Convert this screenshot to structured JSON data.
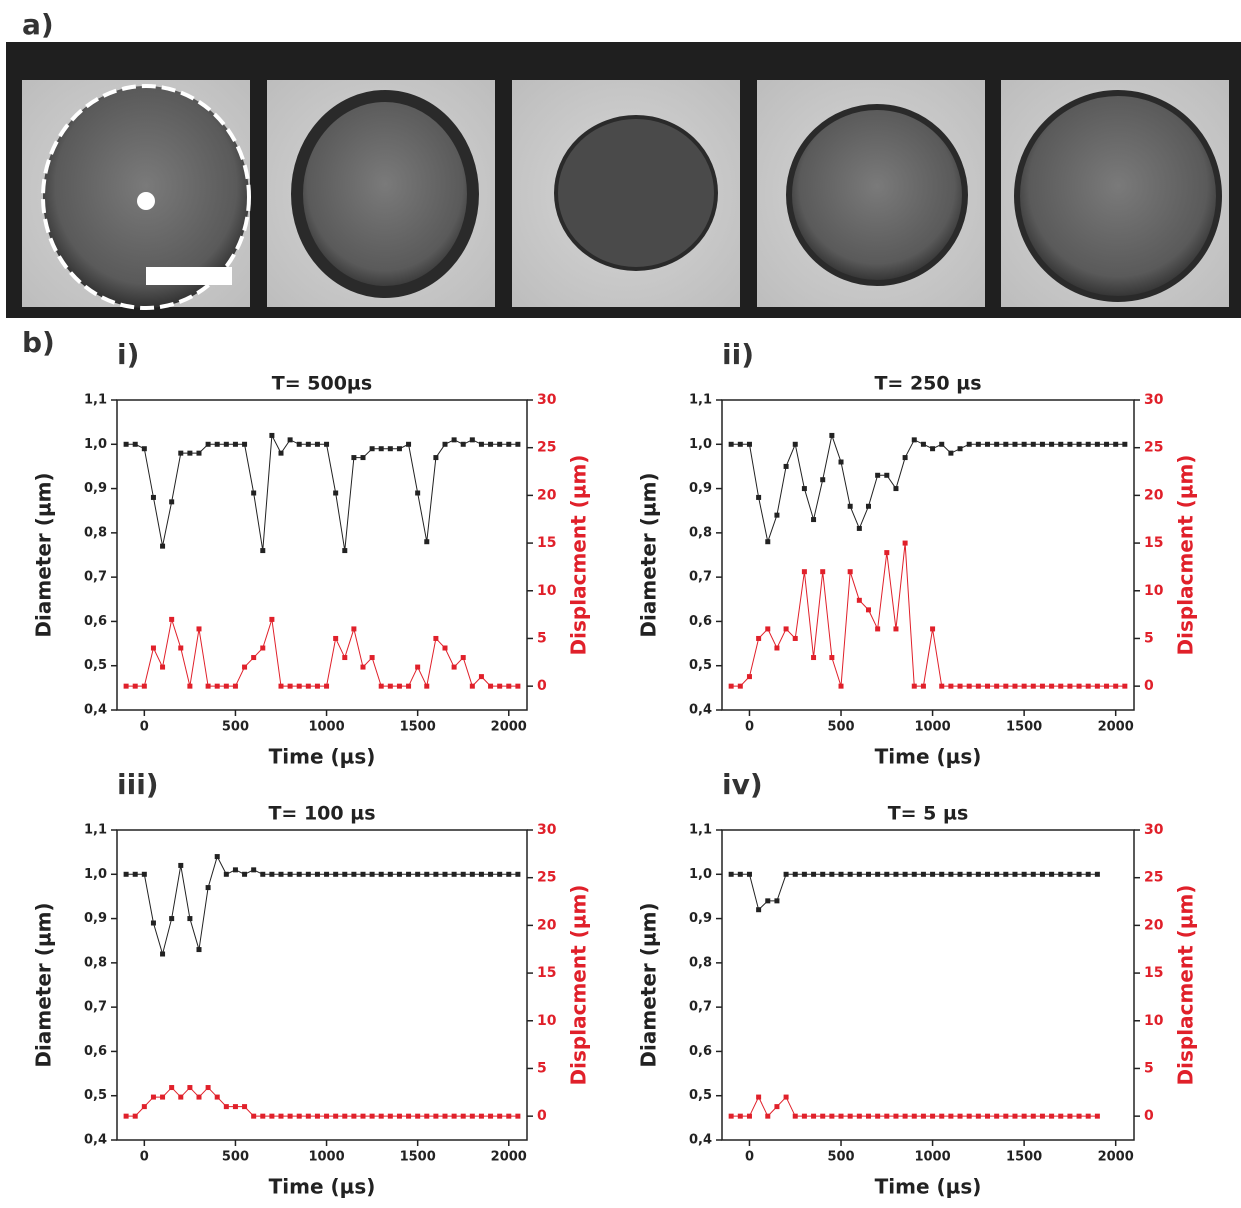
{
  "panel_labels": [
    "a)",
    "b)"
  ],
  "chart_data": [
    {
      "type": "line",
      "label": "i)",
      "title": "T= 500µs",
      "x_label": "Time (µs)",
      "y_label": "Diameter (µm)",
      "y2_label": "Displacment (µm)",
      "x": [
        -100,
        -50,
        0,
        50,
        100,
        150,
        200,
        250,
        300,
        350,
        400,
        450,
        500,
        550,
        600,
        650,
        700,
        750,
        800,
        850,
        900,
        950,
        1000,
        1050,
        1100,
        1150,
        1200,
        1250,
        1300,
        1350,
        1400,
        1450,
        1500,
        1550,
        1600,
        1650,
        1700,
        1750,
        1800,
        1850,
        1900,
        1950,
        2000,
        2050
      ],
      "xlim": [
        -150,
        2100
      ],
      "xticks": [
        0,
        500,
        1000,
        1500,
        2000
      ],
      "ylim": [
        0.4,
        1.1
      ],
      "yticks": [
        {
          "value": 0.4,
          "label": "0,4"
        },
        {
          "value": 0.5,
          "label": "0,5"
        },
        {
          "value": 0.6,
          "label": "0,6"
        },
        {
          "value": 0.7,
          "label": "0,7"
        },
        {
          "value": 0.8,
          "label": "0,8"
        },
        {
          "value": 0.9,
          "label": "0,9"
        },
        {
          "value": 1.0,
          "label": "1,0"
        },
        {
          "value": 1.1,
          "label": "1,1"
        }
      ],
      "y2lim": [
        -2.5,
        30
      ],
      "y2ticks": [
        0,
        5,
        10,
        15,
        20,
        25,
        30
      ],
      "series": [
        {
          "color": "#222222",
          "values": [
            1.0,
            1.0,
            0.99,
            0.88,
            0.77,
            0.87,
            0.98,
            0.98,
            0.98,
            1.0,
            1.0,
            1.0,
            1.0,
            1.0,
            0.89,
            0.76,
            1.02,
            0.98,
            1.01,
            1.0,
            1.0,
            1.0,
            1.0,
            0.89,
            0.76,
            0.97,
            0.97,
            0.99,
            0.99,
            0.99,
            0.99,
            1.0,
            0.89,
            0.78,
            0.97,
            1.0,
            1.01,
            1.0,
            1.01,
            1.0,
            1.0,
            1.0,
            1.0,
            1.0
          ]
        },
        {
          "color": "#e0202a",
          "axis": "y2",
          "values": [
            0,
            0,
            0,
            4,
            2,
            7,
            4,
            0,
            6,
            0,
            0,
            0,
            0,
            2,
            3,
            4,
            7,
            0,
            0,
            0,
            0,
            0,
            0,
            5,
            3,
            6,
            2,
            3,
            0,
            0,
            0,
            0,
            2,
            0,
            5,
            4,
            2,
            3,
            0,
            1,
            0,
            0,
            0,
            0
          ]
        }
      ]
    },
    {
      "type": "line",
      "label": "ii)",
      "title": "T= 250 µs",
      "x_label": "Time (µs)",
      "y_label": "Diameter (µm)",
      "y2_label": "Displacment (µm)",
      "x": [
        -100,
        -50,
        0,
        50,
        100,
        150,
        200,
        250,
        300,
        350,
        400,
        450,
        500,
        550,
        600,
        650,
        700,
        750,
        800,
        850,
        900,
        950,
        1000,
        1050,
        1100,
        1150,
        1200,
        1250,
        1300,
        1350,
        1400,
        1450,
        1500,
        1550,
        1600,
        1650,
        1700,
        1750,
        1800,
        1850,
        1900,
        1950,
        2000,
        2050
      ],
      "xlim": [
        -150,
        2100
      ],
      "xticks": [
        0,
        500,
        1000,
        1500,
        2000
      ],
      "ylim": [
        0.4,
        1.1
      ],
      "yticks": [
        {
          "value": 0.4,
          "label": "0,4"
        },
        {
          "value": 0.5,
          "label": "0,5"
        },
        {
          "value": 0.6,
          "label": "0,6"
        },
        {
          "value": 0.7,
          "label": "0,7"
        },
        {
          "value": 0.8,
          "label": "0,8"
        },
        {
          "value": 0.9,
          "label": "0,9"
        },
        {
          "value": 1.0,
          "label": "1,0"
        },
        {
          "value": 1.1,
          "label": "1,1"
        }
      ],
      "y2lim": [
        -2.5,
        30
      ],
      "y2ticks": [
        0,
        5,
        10,
        15,
        20,
        25,
        30
      ],
      "series": [
        {
          "color": "#222222",
          "values": [
            1.0,
            1.0,
            1.0,
            0.88,
            0.78,
            0.84,
            0.95,
            1.0,
            0.9,
            0.83,
            0.92,
            1.02,
            0.96,
            0.86,
            0.81,
            0.86,
            0.93,
            0.93,
            0.9,
            0.97,
            1.01,
            1.0,
            0.99,
            1.0,
            0.98,
            0.99,
            1.0,
            1.0,
            1.0,
            1.0,
            1.0,
            1.0,
            1.0,
            1.0,
            1.0,
            1.0,
            1.0,
            1.0,
            1.0,
            1.0,
            1.0,
            1.0,
            1.0,
            1.0
          ]
        },
        {
          "color": "#e0202a",
          "axis": "y2",
          "values": [
            0,
            0,
            1,
            5,
            6,
            4,
            6,
            5,
            12,
            3,
            12,
            3,
            0,
            12,
            9,
            8,
            6,
            14,
            6,
            15,
            0,
            0,
            6,
            0,
            0,
            0,
            0,
            0,
            0,
            0,
            0,
            0,
            0,
            0,
            0,
            0,
            0,
            0,
            0,
            0,
            0,
            0,
            0,
            0
          ]
        }
      ]
    },
    {
      "type": "line",
      "label": "iii)",
      "title": "T= 100 µs",
      "x_label": "Time (µs)",
      "y_label": "Diameter (µm)",
      "y2_label": "Displacment (µm)",
      "x": [
        -100,
        -50,
        0,
        50,
        100,
        150,
        200,
        250,
        300,
        350,
        400,
        450,
        500,
        550,
        600,
        650,
        700,
        750,
        800,
        850,
        900,
        950,
        1000,
        1050,
        1100,
        1150,
        1200,
        1250,
        1300,
        1350,
        1400,
        1450,
        1500,
        1550,
        1600,
        1650,
        1700,
        1750,
        1800,
        1850,
        1900,
        1950,
        2000,
        2050
      ],
      "xlim": [
        -150,
        2100
      ],
      "xticks": [
        0,
        500,
        1000,
        1500,
        2000
      ],
      "ylim": [
        0.4,
        1.1
      ],
      "yticks": [
        {
          "value": 0.4,
          "label": "0,4"
        },
        {
          "value": 0.5,
          "label": "0,5"
        },
        {
          "value": 0.6,
          "label": "0,6"
        },
        {
          "value": 0.7,
          "label": "0,7"
        },
        {
          "value": 0.8,
          "label": "0,8"
        },
        {
          "value": 0.9,
          "label": "0,9"
        },
        {
          "value": 1.0,
          "label": "1,0"
        },
        {
          "value": 1.1,
          "label": "1,1"
        }
      ],
      "y2lim": [
        -2.5,
        30
      ],
      "y2ticks": [
        0,
        5,
        10,
        15,
        20,
        25,
        30
      ],
      "series": [
        {
          "color": "#222222",
          "values": [
            1.0,
            1.0,
            1.0,
            0.89,
            0.82,
            0.9,
            1.02,
            0.9,
            0.83,
            0.97,
            1.04,
            1.0,
            1.01,
            1.0,
            1.01,
            1.0,
            1.0,
            1.0,
            1.0,
            1.0,
            1.0,
            1.0,
            1.0,
            1.0,
            1.0,
            1.0,
            1.0,
            1.0,
            1.0,
            1.0,
            1.0,
            1.0,
            1.0,
            1.0,
            1.0,
            1.0,
            1.0,
            1.0,
            1.0,
            1.0,
            1.0,
            1.0,
            1.0,
            1.0
          ]
        },
        {
          "color": "#e0202a",
          "axis": "y2",
          "values": [
            0,
            0,
            1,
            2,
            2,
            3,
            2,
            3,
            2,
            3,
            2,
            1,
            1,
            1,
            0,
            0,
            0,
            0,
            0,
            0,
            0,
            0,
            0,
            0,
            0,
            0,
            0,
            0,
            0,
            0,
            0,
            0,
            0,
            0,
            0,
            0,
            0,
            0,
            0,
            0,
            0,
            0,
            0,
            0
          ]
        }
      ]
    },
    {
      "type": "line",
      "label": "iv)",
      "title": "T= 5 µs",
      "x_label": "Time (µs)",
      "y_label": "Diameter (µm)",
      "y2_label": "Displacment (µm)",
      "x": [
        -100,
        -50,
        0,
        50,
        100,
        150,
        200,
        250,
        300,
        350,
        400,
        450,
        500,
        550,
        600,
        650,
        700,
        750,
        800,
        850,
        900,
        950,
        1000,
        1050,
        1100,
        1150,
        1200,
        1250,
        1300,
        1350,
        1400,
        1450,
        1500,
        1550,
        1600,
        1650,
        1700,
        1750,
        1800,
        1850,
        1900
      ],
      "xlim": [
        -150,
        2100
      ],
      "xticks": [
        0,
        500,
        1000,
        1500,
        2000
      ],
      "ylim": [
        0.4,
        1.1
      ],
      "yticks": [
        {
          "value": 0.4,
          "label": "0,4"
        },
        {
          "value": 0.5,
          "label": "0,5"
        },
        {
          "value": 0.6,
          "label": "0,6"
        },
        {
          "value": 0.7,
          "label": "0,7"
        },
        {
          "value": 0.8,
          "label": "0,8"
        },
        {
          "value": 0.9,
          "label": "0,9"
        },
        {
          "value": 1.0,
          "label": "1,0"
        },
        {
          "value": 1.1,
          "label": "1,1"
        }
      ],
      "y2lim": [
        -2.5,
        30
      ],
      "y2ticks": [
        0,
        5,
        10,
        15,
        20,
        25,
        30
      ],
      "series": [
        {
          "color": "#222222",
          "values": [
            1.0,
            1.0,
            1.0,
            0.92,
            0.94,
            0.94,
            1.0,
            1.0,
            1.0,
            1.0,
            1.0,
            1.0,
            1.0,
            1.0,
            1.0,
            1.0,
            1.0,
            1.0,
            1.0,
            1.0,
            1.0,
            1.0,
            1.0,
            1.0,
            1.0,
            1.0,
            1.0,
            1.0,
            1.0,
            1.0,
            1.0,
            1.0,
            1.0,
            1.0,
            1.0,
            1.0,
            1.0,
            1.0,
            1.0,
            1.0,
            1.0
          ]
        },
        {
          "color": "#e0202a",
          "axis": "y2",
          "values": [
            0,
            0,
            0,
            2,
            0,
            1,
            2,
            0,
            0,
            0,
            0,
            0,
            0,
            0,
            0,
            0,
            0,
            0,
            0,
            0,
            0,
            0,
            0,
            0,
            0,
            0,
            0,
            0,
            0,
            0,
            0,
            0,
            0,
            0,
            0,
            0,
            0,
            0,
            0,
            0,
            0
          ]
        }
      ]
    }
  ]
}
